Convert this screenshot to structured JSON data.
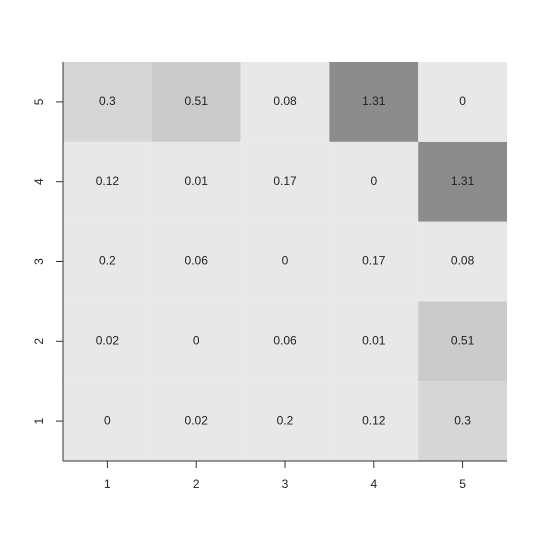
{
  "chart_data": {
    "type": "heatmap",
    "x_categories": [
      "1",
      "2",
      "3",
      "4",
      "5"
    ],
    "y_categories": [
      "1",
      "2",
      "3",
      "4",
      "5"
    ],
    "values": [
      [
        0,
        0.02,
        0.2,
        0.12,
        0.3
      ],
      [
        0.02,
        0,
        0.06,
        0.01,
        0.51
      ],
      [
        0.2,
        0.06,
        0,
        0.17,
        0.08
      ],
      [
        0.12,
        0.01,
        0.17,
        0,
        1.31
      ],
      [
        0.3,
        0.51,
        0.08,
        1.31,
        0
      ]
    ],
    "colors": [
      [
        "#e8e8e8",
        "#e8e8e8",
        "#e8e8e8",
        "#e8e8e8",
        "#d6d6d6"
      ],
      [
        "#e8e8e8",
        "#e8e8e8",
        "#e8e8e8",
        "#e8e8e8",
        "#cbcbcb"
      ],
      [
        "#e8e8e8",
        "#e8e8e8",
        "#e8e8e8",
        "#e8e8e8",
        "#e8e8e8"
      ],
      [
        "#e8e8e8",
        "#e8e8e8",
        "#e8e8e8",
        "#e8e8e8",
        "#8c8c8c"
      ],
      [
        "#d6d6d6",
        "#cbcbcb",
        "#e8e8e8",
        "#8c8c8c",
        "#e8e8e8"
      ]
    ]
  }
}
